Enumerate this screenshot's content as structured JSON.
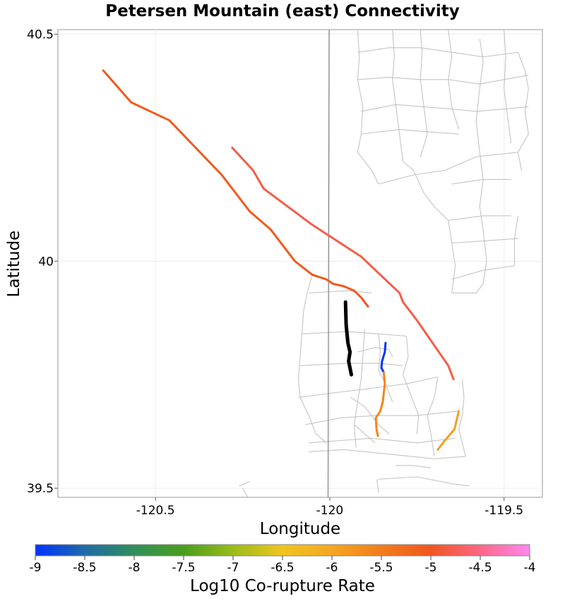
{
  "chart_data": {
    "type": "map",
    "title": "Petersen Mountain (east) Connectivity",
    "xlabel": "Longitude",
    "ylabel": "Latitude",
    "xlim": [
      -120.78,
      -119.39
    ],
    "ylim": [
      39.48,
      40.51
    ],
    "x_ticks": [
      {
        "value": -120.5,
        "label": "-120.5"
      },
      {
        "value": -120.0,
        "label": "-120"
      },
      {
        "value": -119.5,
        "label": "-119.5"
      }
    ],
    "y_ticks": [
      {
        "value": 39.5,
        "label": "39.5"
      },
      {
        "value": 40.0,
        "label": "40"
      },
      {
        "value": 40.5,
        "label": "40.5"
      }
    ],
    "grid": true,
    "state_border": {
      "color": "#808080",
      "points": [
        [
          -120.002,
          40.51
        ],
        [
          -120.005,
          39.48
        ]
      ]
    },
    "colorbar": {
      "title": "Log10 Co-rupture Rate",
      "min": -9,
      "max": -4,
      "ticks": [
        "-9",
        "-8.5",
        "-8",
        "-7.5",
        "-7",
        "-6.5",
        "-6",
        "-5.5",
        "-5",
        "-4.5",
        "-4"
      ],
      "stops": [
        {
          "value": -9,
          "color": "#0033ff"
        },
        {
          "value": -8.5,
          "color": "#1f6aa6"
        },
        {
          "value": -8,
          "color": "#2f8f5a"
        },
        {
          "value": -7.5,
          "color": "#4a9e1c"
        },
        {
          "value": -7,
          "color": "#9abc18"
        },
        {
          "value": -6.5,
          "color": "#f0c520"
        },
        {
          "value": -6,
          "color": "#f5a623"
        },
        {
          "value": -5.5,
          "color": "#f27c1c"
        },
        {
          "value": -5,
          "color": "#f0561e"
        },
        {
          "value": -4.5,
          "color": "#ff6688"
        },
        {
          "value": -4,
          "color": "#ff88ee"
        }
      ]
    },
    "source_section": {
      "name": "Petersen Mountain (east)",
      "color": "#000000",
      "points": [
        [
          -119.955,
          39.91
        ],
        [
          -119.953,
          39.86
        ],
        [
          -119.948,
          39.82
        ],
        [
          -119.942,
          39.8
        ],
        [
          -119.946,
          39.78
        ],
        [
          -119.938,
          39.75
        ]
      ]
    },
    "connected_sections": [
      {
        "log10_rate": -5.05,
        "points": [
          [
            -120.65,
            40.42
          ],
          [
            -120.57,
            40.35
          ],
          [
            -120.46,
            40.31
          ],
          [
            -120.31,
            40.19
          ],
          [
            -120.28,
            40.16
          ],
          [
            -120.23,
            40.11
          ],
          [
            -120.17,
            40.07
          ],
          [
            -120.1,
            40.0
          ],
          [
            -120.05,
            39.97
          ]
        ]
      },
      {
        "log10_rate": -5.0,
        "points": [
          [
            -120.05,
            39.97
          ],
          [
            -120.01,
            39.96
          ],
          [
            -119.99,
            39.95
          ],
          [
            -119.96,
            39.945
          ],
          [
            -119.93,
            39.935
          ],
          [
            -119.91,
            39.92
          ],
          [
            -119.89,
            39.9
          ]
        ]
      },
      {
        "log10_rate": -4.8,
        "points": [
          [
            -120.28,
            40.25
          ],
          [
            -120.22,
            40.2
          ],
          [
            -120.19,
            40.16
          ],
          [
            -120.05,
            40.08
          ],
          [
            -119.97,
            40.04
          ],
          [
            -119.91,
            40.01
          ],
          [
            -119.8,
            39.93
          ],
          [
            -119.79,
            39.91
          ],
          [
            -119.75,
            39.87
          ],
          [
            -119.66,
            39.77
          ],
          [
            -119.645,
            39.74
          ]
        ]
      },
      {
        "log10_rate": -9.0,
        "points": [
          [
            -119.84,
            39.82
          ],
          [
            -119.842,
            39.8
          ],
          [
            -119.85,
            39.78
          ],
          [
            -119.852,
            39.765
          ],
          [
            -119.845,
            39.755
          ]
        ]
      },
      {
        "log10_rate": -5.6,
        "points": [
          [
            -119.845,
            39.755
          ],
          [
            -119.842,
            39.73
          ],
          [
            -119.848,
            39.69
          ],
          [
            -119.855,
            39.67
          ],
          [
            -119.868,
            39.655
          ],
          [
            -119.866,
            39.63
          ],
          [
            -119.862,
            39.615
          ]
        ]
      },
      {
        "log10_rate": -5.9,
        "points": [
          [
            -119.63,
            39.67
          ],
          [
            -119.642,
            39.63
          ],
          [
            -119.67,
            39.605
          ],
          [
            -119.69,
            39.585
          ]
        ]
      }
    ],
    "background_sections": [
      [
        [
          -120.05,
          39.97
        ],
        [
          -120.065,
          39.93
        ],
        [
          -120.075,
          39.89
        ],
        [
          -120.08,
          39.84
        ],
        [
          -120.085,
          39.79
        ],
        [
          -120.09,
          39.74
        ],
        [
          -120.085,
          39.7
        ]
      ],
      [
        [
          -120.085,
          39.7
        ],
        [
          -120.06,
          39.66
        ],
        [
          -120.04,
          39.62
        ],
        [
          -120.01,
          39.6
        ]
      ],
      [
        [
          -120.06,
          39.93
        ],
        [
          -119.95,
          39.935
        ],
        [
          -119.88,
          39.93
        ]
      ],
      [
        [
          -120.08,
          39.84
        ],
        [
          -119.95,
          39.845
        ],
        [
          -119.86,
          39.84
        ],
        [
          -119.78,
          39.835
        ]
      ],
      [
        [
          -120.085,
          39.77
        ],
        [
          -119.95,
          39.775
        ],
        [
          -119.86,
          39.775
        ],
        [
          -119.79,
          39.77
        ]
      ],
      [
        [
          -120.09,
          39.7
        ],
        [
          -119.99,
          39.71
        ],
        [
          -119.88,
          39.72
        ],
        [
          -119.78,
          39.73
        ],
        [
          -119.69,
          39.745
        ]
      ],
      [
        [
          -120.07,
          39.64
        ],
        [
          -119.97,
          39.655
        ],
        [
          -119.87,
          39.66
        ],
        [
          -119.75,
          39.66
        ],
        [
          -119.63,
          39.67
        ]
      ],
      [
        [
          -120.06,
          39.6
        ],
        [
          -119.97,
          39.605
        ],
        [
          -119.88,
          39.61
        ],
        [
          -119.75,
          39.6
        ],
        [
          -119.64,
          39.61
        ]
      ],
      [
        [
          -119.9,
          39.85
        ],
        [
          -119.905,
          39.79
        ],
        [
          -119.91,
          39.74
        ],
        [
          -119.92,
          39.69
        ],
        [
          -119.93,
          39.64
        ],
        [
          -119.925,
          39.59
        ]
      ],
      [
        [
          -119.86,
          39.84
        ],
        [
          -119.855,
          39.8
        ],
        [
          -119.86,
          39.76
        ],
        [
          -119.84,
          39.73
        ],
        [
          -119.82,
          39.69
        ]
      ],
      [
        [
          -119.78,
          39.835
        ],
        [
          -119.775,
          39.79
        ],
        [
          -119.79,
          39.75
        ],
        [
          -119.77,
          39.71
        ],
        [
          -119.745,
          39.66
        ],
        [
          -119.75,
          39.62
        ]
      ],
      [
        [
          -119.69,
          39.745
        ],
        [
          -119.7,
          39.7
        ],
        [
          -119.72,
          39.66
        ],
        [
          -119.71,
          39.62
        ],
        [
          -119.7,
          39.57
        ]
      ],
      [
        [
          -119.62,
          39.74
        ],
        [
          -119.615,
          39.7
        ],
        [
          -119.62,
          39.66
        ],
        [
          -119.63,
          39.63
        ],
        [
          -119.61,
          39.57
        ]
      ],
      [
        [
          -120.06,
          39.58
        ],
        [
          -119.96,
          39.585
        ],
        [
          -119.83,
          39.575
        ],
        [
          -119.7,
          39.565
        ],
        [
          -119.61,
          39.57
        ]
      ],
      [
        [
          -119.92,
          39.8
        ],
        [
          -119.87,
          39.81
        ],
        [
          -119.83,
          39.805
        ],
        [
          -119.82,
          39.79
        ]
      ],
      [
        [
          -119.94,
          39.7
        ],
        [
          -119.9,
          39.68
        ],
        [
          -119.86,
          39.64
        ],
        [
          -119.83,
          39.62
        ]
      ],
      [
        [
          -119.93,
          39.64
        ],
        [
          -119.9,
          39.62
        ],
        [
          -119.87,
          39.6
        ]
      ],
      [
        [
          -119.865,
          39.52
        ],
        [
          -119.86,
          39.49
        ]
      ],
      [
        [
          -119.86,
          39.52
        ],
        [
          -119.75,
          39.525
        ],
        [
          -119.65,
          39.51
        ],
        [
          -119.6,
          39.505
        ]
      ],
      [
        [
          -119.81,
          39.55
        ],
        [
          -119.76,
          39.55
        ],
        [
          -119.71,
          39.545
        ]
      ],
      [
        [
          -120.25,
          39.5
        ],
        [
          -120.235,
          39.48
        ]
      ],
      [
        [
          -120.26,
          39.505
        ],
        [
          -120.23,
          39.515
        ]
      ],
      [
        [
          -119.92,
          40.51
        ],
        [
          -119.915,
          40.45
        ],
        [
          -119.92,
          40.4
        ],
        [
          -119.905,
          40.34
        ],
        [
          -119.91,
          40.28
        ]
      ],
      [
        [
          -119.91,
          40.28
        ],
        [
          -119.92,
          40.24
        ],
        [
          -119.88,
          40.2
        ],
        [
          -119.86,
          40.17
        ]
      ],
      [
        [
          -119.82,
          40.51
        ],
        [
          -119.815,
          40.45
        ],
        [
          -119.82,
          40.4
        ],
        [
          -119.81,
          40.34
        ],
        [
          -119.8,
          40.28
        ],
        [
          -119.79,
          40.22
        ]
      ],
      [
        [
          -119.74,
          40.51
        ],
        [
          -119.735,
          40.46
        ],
        [
          -119.74,
          40.4
        ],
        [
          -119.73,
          40.34
        ],
        [
          -119.72,
          40.28
        ],
        [
          -119.74,
          40.23
        ]
      ],
      [
        [
          -119.66,
          40.51
        ],
        [
          -119.65,
          40.45
        ],
        [
          -119.66,
          40.4
        ],
        [
          -119.65,
          40.34
        ],
        [
          -119.63,
          40.29
        ]
      ],
      [
        [
          -119.57,
          40.49
        ],
        [
          -119.56,
          40.44
        ],
        [
          -119.57,
          40.38
        ],
        [
          -119.58,
          40.31
        ],
        [
          -119.57,
          40.24
        ]
      ],
      [
        [
          -119.5,
          40.51
        ],
        [
          -119.495,
          40.45
        ],
        [
          -119.5,
          40.38
        ],
        [
          -119.49,
          40.32
        ],
        [
          -119.48,
          40.26
        ]
      ],
      [
        [
          -119.92,
          40.46
        ],
        [
          -119.83,
          40.47
        ],
        [
          -119.74,
          40.47
        ],
        [
          -119.65,
          40.46
        ],
        [
          -119.56,
          40.45
        ],
        [
          -119.46,
          40.46
        ]
      ],
      [
        [
          -119.92,
          40.4
        ],
        [
          -119.83,
          40.405
        ],
        [
          -119.74,
          40.4
        ],
        [
          -119.66,
          40.4
        ],
        [
          -119.57,
          40.39
        ],
        [
          -119.43,
          40.41
        ]
      ],
      [
        [
          -119.91,
          40.33
        ],
        [
          -119.81,
          40.345
        ],
        [
          -119.73,
          40.34
        ],
        [
          -119.65,
          40.335
        ],
        [
          -119.58,
          40.33
        ],
        [
          -119.43,
          40.34
        ]
      ],
      [
        [
          -119.91,
          40.28
        ],
        [
          -119.8,
          40.29
        ],
        [
          -119.72,
          40.285
        ],
        [
          -119.63,
          40.28
        ]
      ],
      [
        [
          -119.86,
          40.17
        ],
        [
          -119.76,
          40.19
        ],
        [
          -119.67,
          40.2
        ],
        [
          -119.58,
          40.23
        ],
        [
          -119.46,
          40.24
        ]
      ],
      [
        [
          -119.79,
          40.22
        ],
        [
          -119.76,
          40.2
        ],
        [
          -119.73,
          40.15
        ],
        [
          -119.7,
          40.12
        ],
        [
          -119.66,
          40.09
        ],
        [
          -119.65,
          40.04
        ],
        [
          -119.64,
          39.99
        ],
        [
          -119.65,
          39.93
        ]
      ],
      [
        [
          -119.57,
          40.24
        ],
        [
          -119.56,
          40.18
        ],
        [
          -119.57,
          40.12
        ],
        [
          -119.56,
          40.07
        ],
        [
          -119.55,
          40.0
        ],
        [
          -119.56,
          39.95
        ]
      ],
      [
        [
          -119.65,
          40.17
        ],
        [
          -119.56,
          40.18
        ],
        [
          -119.48,
          40.18
        ]
      ],
      [
        [
          -119.66,
          40.09
        ],
        [
          -119.56,
          40.1
        ],
        [
          -119.48,
          40.1
        ]
      ],
      [
        [
          -119.65,
          40.04
        ],
        [
          -119.55,
          40.045
        ],
        [
          -119.46,
          40.05
        ]
      ],
      [
        [
          -119.65,
          39.96
        ],
        [
          -119.56,
          39.98
        ],
        [
          -119.47,
          39.99
        ]
      ],
      [
        [
          -119.65,
          39.93
        ],
        [
          -119.58,
          39.93
        ],
        [
          -119.56,
          39.95
        ]
      ],
      [
        [
          -119.46,
          40.46
        ],
        [
          -119.44,
          40.42
        ],
        [
          -119.43,
          40.38
        ],
        [
          -119.44,
          40.33
        ],
        [
          -119.43,
          40.28
        ]
      ],
      [
        [
          -119.43,
          40.28
        ],
        [
          -119.46,
          40.24
        ],
        [
          -119.45,
          40.2
        ]
      ],
      [
        [
          -119.46,
          40.1
        ],
        [
          -119.47,
          40.05
        ],
        [
          -119.47,
          39.99
        ]
      ]
    ]
  }
}
